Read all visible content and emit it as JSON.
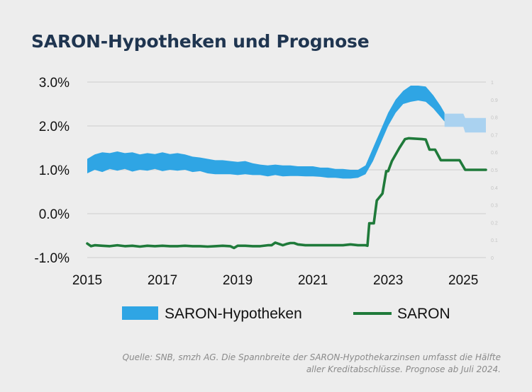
{
  "chart_data": {
    "type": "line",
    "title": "SARON-Hypotheken und Prognose",
    "xlabel": "",
    "ylabel": "",
    "xlim": [
      2015,
      2025.6
    ],
    "ylim": [
      -1.0,
      3.0
    ],
    "y_ticks": [
      "3.0%",
      "2.0%",
      "1.0%",
      "0.0%",
      "-1.0%"
    ],
    "y_tick_values": [
      3.0,
      2.0,
      1.0,
      0.0,
      -1.0
    ],
    "x_ticks": [
      "2015",
      "2017",
      "2019",
      "2021",
      "2023",
      "2025"
    ],
    "x_tick_values": [
      2015,
      2017,
      2019,
      2021,
      2023,
      2025
    ],
    "right_ticks": [
      "1",
      "0.9",
      "0.8",
      "0.7",
      "0.6",
      "0.5",
      "0.4",
      "0.3",
      "0.2",
      "0.1",
      "0"
    ],
    "right_tick_values": [
      1,
      0.9,
      0.8,
      0.7,
      0.6,
      0.5,
      0.4,
      0.3,
      0.2,
      0.1,
      0
    ],
    "right_ylim": [
      0,
      1
    ],
    "legend_position": "bottom",
    "colors": {
      "band": "#2fa5e4",
      "forecast_band": "#aad2f0",
      "saron": "#1f7a3a",
      "grid": "#d4d4d4"
    },
    "series": [
      {
        "name": "SARON-Hypotheken",
        "kind": "band",
        "x": [
          2015.0,
          2015.2,
          2015.4,
          2015.6,
          2015.8,
          2016.0,
          2016.2,
          2016.4,
          2016.6,
          2016.8,
          2017.0,
          2017.2,
          2017.4,
          2017.6,
          2017.8,
          2018.0,
          2018.2,
          2018.4,
          2018.6,
          2018.8,
          2019.0,
          2019.2,
          2019.4,
          2019.6,
          2019.8,
          2020.0,
          2020.2,
          2020.4,
          2020.6,
          2020.8,
          2021.0,
          2021.2,
          2021.4,
          2021.6,
          2021.8,
          2022.0,
          2022.2,
          2022.4,
          2022.6,
          2022.8,
          2023.0,
          2023.2,
          2023.4,
          2023.6,
          2023.8,
          2024.0,
          2024.2,
          2024.4,
          2024.5
        ],
        "lower": [
          0.92,
          1.0,
          0.95,
          1.02,
          0.98,
          1.02,
          0.96,
          1.0,
          0.98,
          1.02,
          0.97,
          1.0,
          0.98,
          1.0,
          0.95,
          0.97,
          0.92,
          0.9,
          0.9,
          0.9,
          0.88,
          0.9,
          0.88,
          0.88,
          0.85,
          0.88,
          0.85,
          0.86,
          0.86,
          0.85,
          0.85,
          0.84,
          0.82,
          0.82,
          0.8,
          0.8,
          0.82,
          0.9,
          1.2,
          1.6,
          2.0,
          2.3,
          2.5,
          2.55,
          2.58,
          2.55,
          2.4,
          2.2,
          2.1
        ],
        "upper": [
          1.25,
          1.35,
          1.4,
          1.38,
          1.42,
          1.38,
          1.4,
          1.35,
          1.38,
          1.36,
          1.4,
          1.36,
          1.38,
          1.35,
          1.3,
          1.28,
          1.25,
          1.22,
          1.22,
          1.2,
          1.18,
          1.2,
          1.15,
          1.12,
          1.1,
          1.12,
          1.1,
          1.1,
          1.08,
          1.08,
          1.08,
          1.05,
          1.05,
          1.02,
          1.02,
          1.0,
          1.0,
          1.1,
          1.5,
          1.9,
          2.3,
          2.6,
          2.8,
          2.92,
          2.92,
          2.9,
          2.7,
          2.45,
          2.3
        ]
      },
      {
        "name": "Prognose",
        "kind": "forecast_band",
        "x": [
          2024.5,
          2025.0,
          2025.05,
          2025.6
        ],
        "lower": [
          1.98,
          1.98,
          1.85,
          1.85
        ],
        "upper": [
          2.28,
          2.28,
          2.18,
          2.18
        ]
      },
      {
        "name": "SARON",
        "kind": "line",
        "x": [
          2015.0,
          2015.1,
          2015.2,
          2015.4,
          2015.6,
          2015.8,
          2016.0,
          2016.2,
          2016.4,
          2016.6,
          2016.8,
          2017.0,
          2017.2,
          2017.4,
          2017.6,
          2017.8,
          2018.0,
          2018.2,
          2018.4,
          2018.6,
          2018.8,
          2018.9,
          2019.0,
          2019.2,
          2019.4,
          2019.6,
          2019.8,
          2019.9,
          2020.0,
          2020.2,
          2020.3,
          2020.4,
          2020.5,
          2020.6,
          2020.8,
          2021.0,
          2021.2,
          2021.4,
          2021.6,
          2021.8,
          2022.0,
          2022.2,
          2022.4,
          2022.45,
          2022.5,
          2022.62,
          2022.7,
          2022.85,
          2022.95,
          2023.0,
          2023.1,
          2023.3,
          2023.45,
          2023.55,
          2023.9,
          2024.0,
          2024.1,
          2024.25,
          2024.4,
          2024.5,
          2024.75,
          2024.9,
          2025.05,
          2025.25,
          2025.6
        ],
        "y": [
          -0.68,
          -0.74,
          -0.72,
          -0.73,
          -0.74,
          -0.72,
          -0.74,
          -0.73,
          -0.75,
          -0.73,
          -0.74,
          -0.73,
          -0.74,
          -0.74,
          -0.73,
          -0.74,
          -0.74,
          -0.75,
          -0.74,
          -0.73,
          -0.74,
          -0.78,
          -0.73,
          -0.73,
          -0.74,
          -0.74,
          -0.72,
          -0.72,
          -0.66,
          -0.72,
          -0.69,
          -0.67,
          -0.67,
          -0.7,
          -0.72,
          -0.72,
          -0.72,
          -0.72,
          -0.72,
          -0.72,
          -0.7,
          -0.72,
          -0.72,
          -0.73,
          -0.22,
          -0.22,
          0.3,
          0.46,
          0.97,
          0.97,
          1.2,
          1.5,
          1.7,
          1.72,
          1.7,
          1.69,
          1.46,
          1.46,
          1.22,
          1.22,
          1.22,
          1.22,
          1.0,
          1.0,
          1.0
        ]
      }
    ],
    "legend": [
      {
        "label": "SARON-Hypotheken",
        "kind": "band"
      },
      {
        "label": "SARON",
        "kind": "line"
      }
    ]
  },
  "source_line1": "Quelle: SNB, smzh AG. Die Spannbreite der SARON-Hypothekarzinsen umfasst die Hälfte",
  "source_line2": "aller Kreditabschlüsse. Prognose ab Juli 2024."
}
